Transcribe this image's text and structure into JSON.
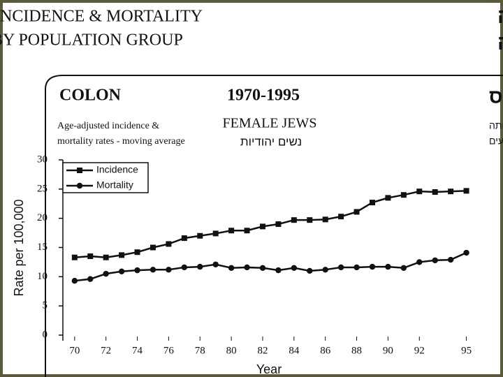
{
  "header": {
    "title_en": [
      "INCIDENCE & MORTALITY",
      "BY POPULATION GROUP"
    ],
    "title_he": [
      "תחלואה ותמותה",
      "לפי קבוצת אוכלוסייה"
    ]
  },
  "chart_data": {
    "type": "line",
    "title": "COLON",
    "period": "1970-1995",
    "title_he": "מעי גס",
    "subtitle": [
      "Age-adjusted incidence &",
      "mortality rates - moving average"
    ],
    "group": "FEMALE  JEWS",
    "group_he": "נשים יהודיות",
    "subtitle_he": [
      "שיעורי תחלואה ותמותה",
      "מתוקננים לגיל - ממוצעים נעים"
    ],
    "x_label": "Year",
    "y_label": "Rate per 100,000",
    "x": [
      70,
      71,
      72,
      73,
      74,
      75,
      76,
      77,
      78,
      79,
      80,
      81,
      82,
      83,
      84,
      85,
      86,
      87,
      88,
      89,
      90,
      91,
      92,
      93,
      94,
      95
    ],
    "xlim": [
      69.25,
      96
    ],
    "xticks": [
      70,
      72,
      74,
      76,
      78,
      80,
      82,
      84,
      86,
      88,
      90,
      92,
      95
    ],
    "ylim": [
      0,
      30
    ],
    "yticks": [
      0,
      5,
      10,
      15,
      20,
      25,
      30
    ],
    "legend": "upper left",
    "series": [
      {
        "name": "Incidence",
        "color": "#111111",
        "marker": "square",
        "values": [
          13.3,
          13.5,
          13.3,
          13.7,
          14.2,
          15.0,
          15.6,
          16.6,
          17.0,
          17.4,
          17.9,
          17.9,
          18.6,
          19.0,
          19.7,
          19.7,
          19.8,
          20.3,
          21.1,
          22.7,
          23.5,
          24.0,
          24.6,
          24.5,
          24.6,
          24.7
        ]
      },
      {
        "name": "Mortality",
        "color": "#111111",
        "marker": "circle",
        "values": [
          9.3,
          9.6,
          10.5,
          10.9,
          11.1,
          11.2,
          11.2,
          11.6,
          11.7,
          12.1,
          11.5,
          11.6,
          11.5,
          11.1,
          11.5,
          11.0,
          11.2,
          11.6,
          11.6,
          11.7,
          11.7,
          11.5,
          12.5,
          12.8,
          12.9,
          14.1
        ]
      }
    ]
  }
}
